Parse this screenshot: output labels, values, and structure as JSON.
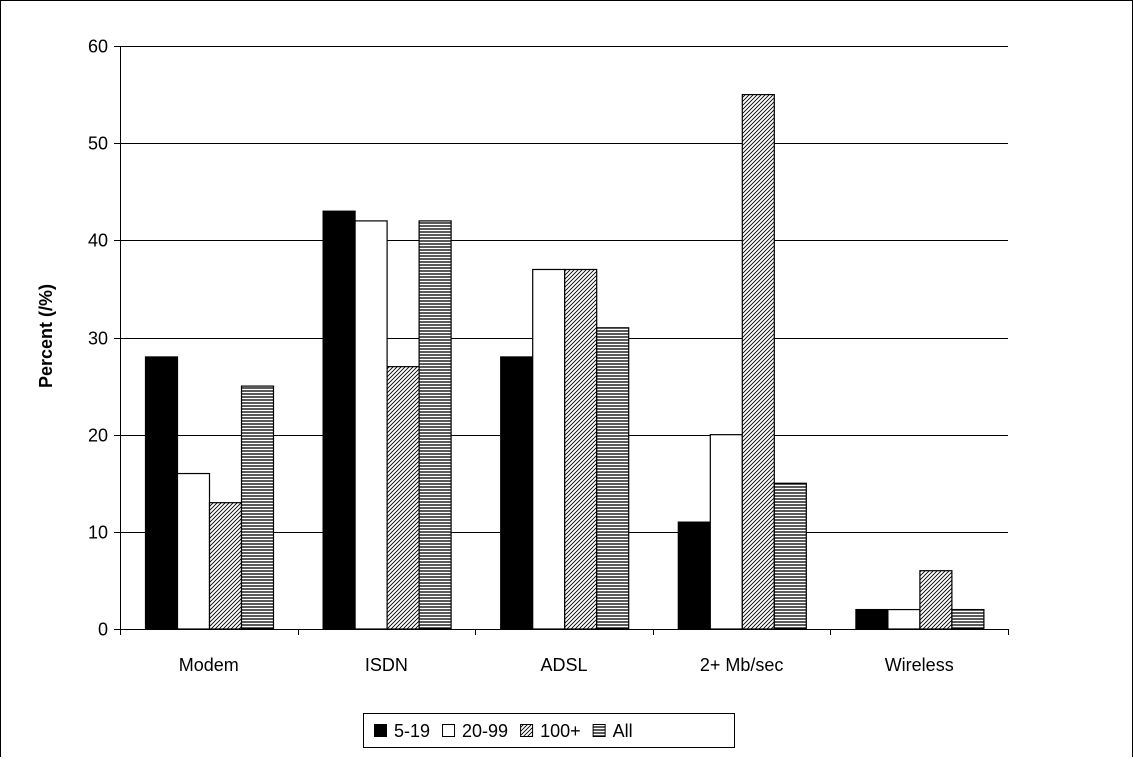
{
  "chart_data": {
    "type": "bar",
    "title": "",
    "xlabel": "",
    "ylabel": "Percent (/%)",
    "ylim": [
      0,
      60
    ],
    "yticks": [
      0,
      10,
      20,
      30,
      40,
      50,
      60
    ],
    "grid": true,
    "legend_position": "bottom",
    "categories": [
      "Modem",
      "ISDN",
      "ADSL",
      "2+ Mb/sec",
      "Wireless"
    ],
    "series": [
      {
        "name": "5-19",
        "values": [
          28,
          43,
          28,
          11,
          2
        ],
        "fill": "solid-black"
      },
      {
        "name": "20-99",
        "values": [
          16,
          42,
          37,
          20,
          2
        ],
        "fill": "white"
      },
      {
        "name": "100+",
        "values": [
          13,
          27,
          37,
          55,
          6
        ],
        "fill": "diagonal-hatch"
      },
      {
        "name": "All",
        "values": [
          25,
          42,
          31,
          15,
          2
        ],
        "fill": "horizontal-hatch"
      }
    ]
  }
}
